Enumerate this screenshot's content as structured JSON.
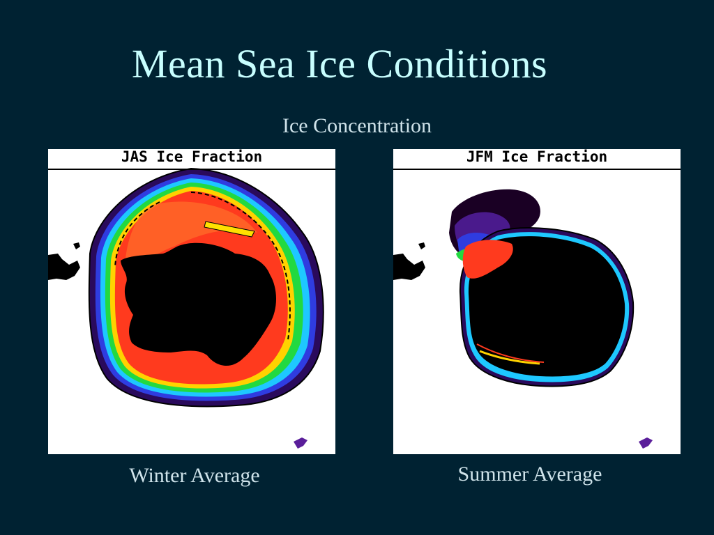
{
  "slide": {
    "title": "Mean Sea Ice Conditions",
    "subtitle": "Ice Concentration"
  },
  "panels": [
    {
      "header": "JAS Ice Fraction",
      "caption": "Winter Average"
    },
    {
      "header": "JFM Ice Fraction",
      "caption": "Summer Average"
    }
  ],
  "colors": {
    "background": "#002232",
    "title": "#c8ffff",
    "text": "#cfe3ea",
    "ice_high": "#ff3a1e",
    "ice_mid": "#ffd200",
    "ice_green": "#22d940",
    "ice_cyan": "#1ec8ff",
    "ice_blue": "#2f3ce0",
    "ice_purple": "#3b0a6c",
    "land": "#000000"
  }
}
